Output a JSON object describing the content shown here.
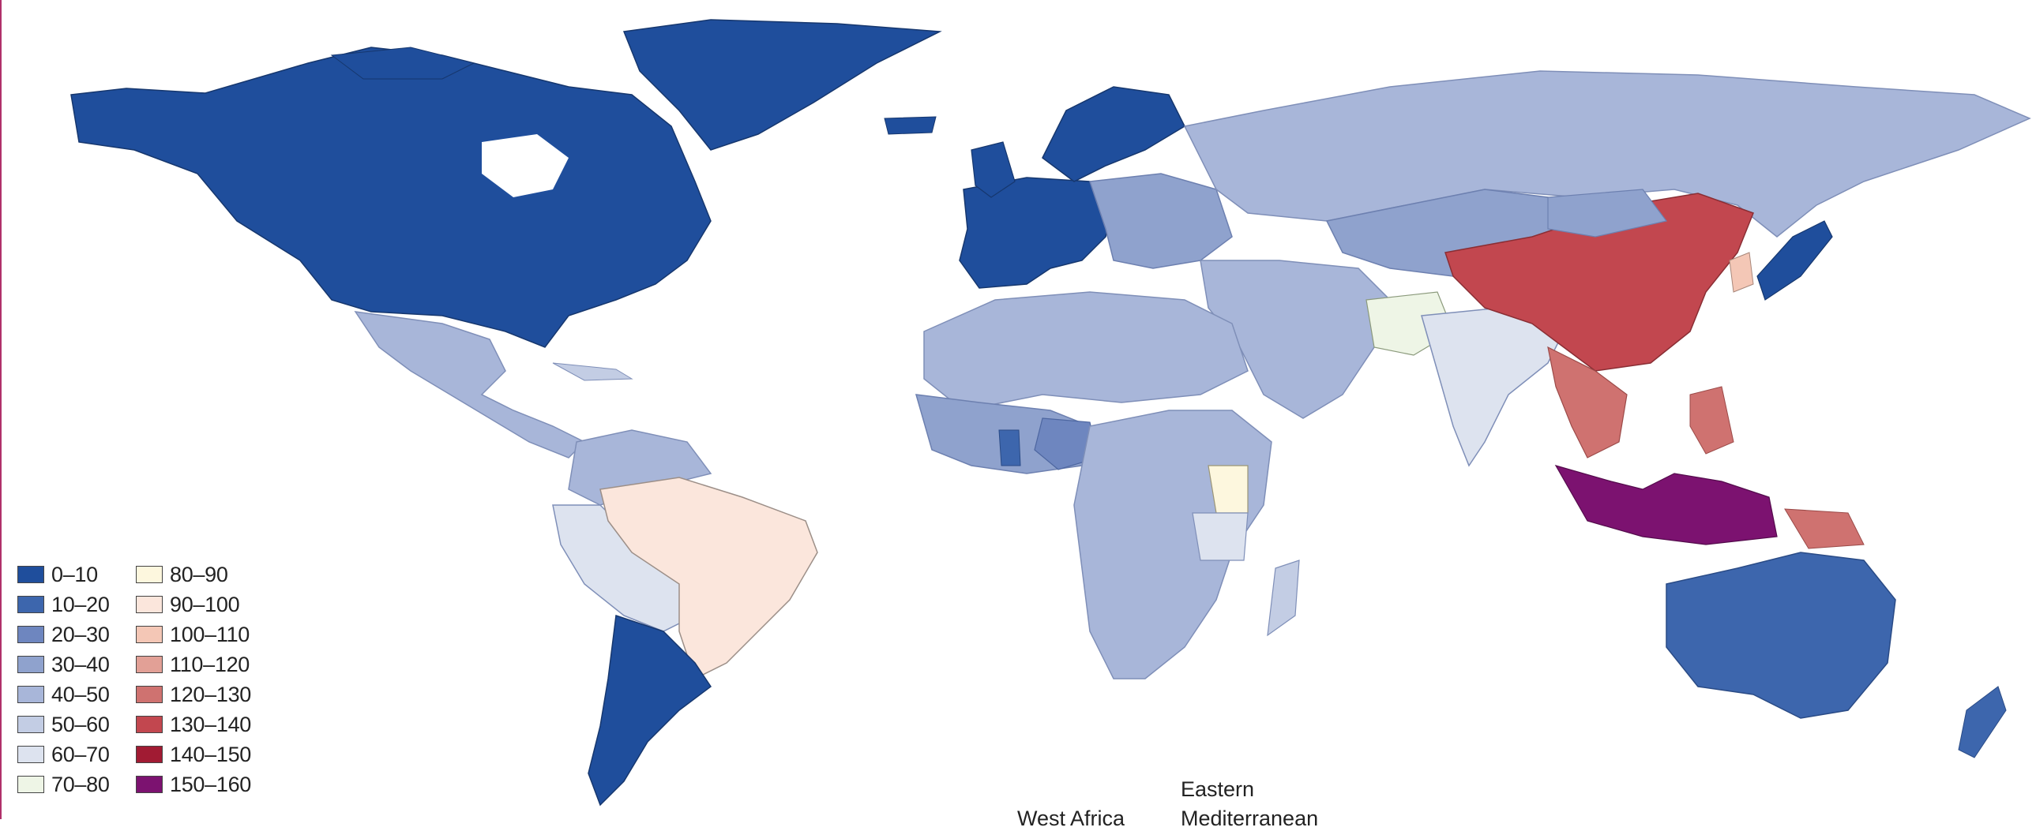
{
  "legend": {
    "items": [
      {
        "label": "0–10",
        "color": "#1f4e9c"
      },
      {
        "label": "10–20",
        "color": "#3d66ad"
      },
      {
        "label": "20–30",
        "color": "#6e86bf"
      },
      {
        "label": "30–40",
        "color": "#8fa2cd"
      },
      {
        "label": "40–50",
        "color": "#a8b6d9"
      },
      {
        "label": "50–60",
        "color": "#c3cde4"
      },
      {
        "label": "60–70",
        "color": "#dde3ef"
      },
      {
        "label": "70–80",
        "color": "#eef5e6"
      },
      {
        "label": "80–90",
        "color": "#fdf7de"
      },
      {
        "label": "90–100",
        "color": "#fbe6dc"
      },
      {
        "label": "100–110",
        "color": "#f4c7b6"
      },
      {
        "label": "110–120",
        "color": "#e2a096"
      },
      {
        "label": "120–130",
        "color": "#cf7270"
      },
      {
        "label": "130–140",
        "color": "#c2474f"
      },
      {
        "label": "140–150",
        "color": "#a11b33"
      },
      {
        "label": "150–160",
        "color": "#7c1270"
      }
    ]
  },
  "regions": {
    "west_africa": "West Africa",
    "eastern_line1": "Eastern",
    "eastern_line2": "Mediterranean"
  }
}
